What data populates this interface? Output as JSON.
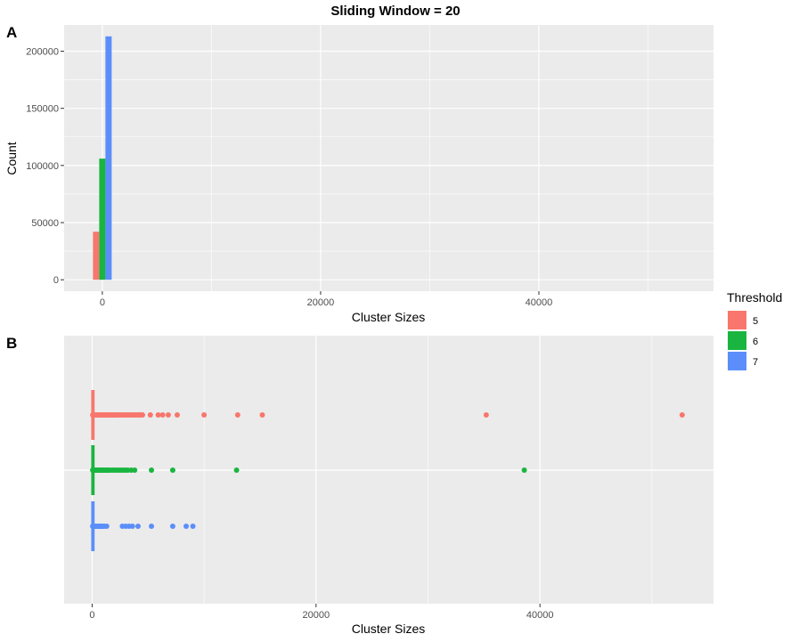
{
  "title": "Sliding Window = 20",
  "legend": {
    "title": "Threshold",
    "items": [
      {
        "label": "5",
        "color": "#F8766D"
      },
      {
        "label": "6",
        "color": "#19B540"
      },
      {
        "label": "7",
        "color": "#5B8EFA"
      }
    ]
  },
  "chart_data": [
    {
      "panel": "A",
      "type": "bar",
      "xlabel": "Cluster Sizes",
      "ylabel": "Count",
      "xlim": [
        -3500,
        56000
      ],
      "ylim": [
        -10000,
        223000
      ],
      "xticks": [
        0,
        20000,
        40000
      ],
      "yticks": [
        0,
        50000,
        100000,
        150000,
        200000
      ],
      "series": [
        {
          "name": "5",
          "x": 0,
          "value": 42000
        },
        {
          "name": "6",
          "x": 0,
          "value": 106000
        },
        {
          "name": "7",
          "x": 0,
          "value": 213000
        }
      ],
      "grid": true
    },
    {
      "panel": "B",
      "type": "scatter",
      "xlabel": "Cluster Sizes",
      "ylabel": "",
      "xlim": [
        -2500,
        55500
      ],
      "xticks": [
        0,
        20000,
        40000
      ],
      "series": [
        {
          "name": "5",
          "box_max": 300,
          "values": [
            50,
            150,
            250,
            350,
            450,
            550,
            650,
            750,
            850,
            950,
            1050,
            1150,
            1250,
            1350,
            1450,
            1550,
            1650,
            1750,
            1850,
            1950,
            2050,
            2150,
            2250,
            2400,
            2550,
            2700,
            2850,
            3000,
            3150,
            3300,
            3450,
            3600,
            3750,
            3900,
            4050,
            4200,
            4350,
            4500,
            5200,
            5900,
            6300,
            6800,
            7600,
            10000,
            13000,
            15200,
            35200,
            52700
          ]
        },
        {
          "name": "6",
          "box_max": 300,
          "values": [
            50,
            150,
            250,
            350,
            450,
            550,
            650,
            750,
            850,
            950,
            1050,
            1150,
            1250,
            1350,
            1450,
            1600,
            1800,
            2000,
            2200,
            2400,
            2600,
            2800,
            3000,
            3200,
            3500,
            3800,
            5300,
            7200,
            12900,
            38600
          ]
        },
        {
          "name": "7",
          "box_max": 300,
          "values": [
            50,
            150,
            250,
            350,
            450,
            550,
            650,
            750,
            850,
            950,
            1100,
            1300,
            2700,
            3000,
            3300,
            3600,
            4100,
            5300,
            7200,
            8400,
            9000
          ]
        }
      ],
      "grid": true
    }
  ]
}
